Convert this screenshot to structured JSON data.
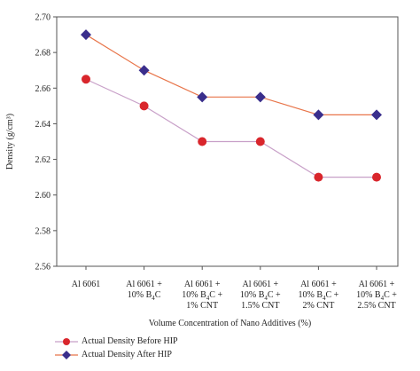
{
  "chart_data": {
    "type": "line",
    "title": "",
    "xlabel": "Volume Concentration of Nano Additives (%)",
    "ylabel": "Density (g/cm³)",
    "ylim": [
      2.56,
      2.7
    ],
    "yticks": [
      "2.56",
      "2.58",
      "2.60",
      "2.62",
      "2.64",
      "2.66",
      "2.68",
      "2.70"
    ],
    "grid": false,
    "legend_position": "bottom-left",
    "categories": [
      {
        "lines": [
          {
            "t": "Al 6061"
          }
        ]
      },
      {
        "lines": [
          {
            "t": "Al 6061 +"
          },
          {
            "t": "10% B",
            "sub": "4",
            "t2": "C"
          }
        ]
      },
      {
        "lines": [
          {
            "t": "Al 6061 +"
          },
          {
            "t": "10% B",
            "sub": "4",
            "t2": "C +"
          },
          {
            "t": "1% CNT"
          }
        ]
      },
      {
        "lines": [
          {
            "t": "Al 6061 +"
          },
          {
            "t": "10% B",
            "sub": "4",
            "t2": "C +"
          },
          {
            "t": "1.5% CNT"
          }
        ]
      },
      {
        "lines": [
          {
            "t": "Al 6061 +"
          },
          {
            "t": "10% B",
            "sub": "4",
            "t2": "C +"
          },
          {
            "t": "2% CNT"
          }
        ]
      },
      {
        "lines": [
          {
            "t": "Al 6061 +"
          },
          {
            "t": "10% B",
            "sub": "4",
            "t2": "C +"
          },
          {
            "t": "2.5% CNT"
          }
        ]
      }
    ],
    "series": [
      {
        "name": "Actual Density Before HIP",
        "marker": "circle",
        "line_color": "#c8a0c8",
        "marker_color": "#d9262c",
        "values": [
          2.665,
          2.65,
          2.63,
          2.63,
          2.61,
          2.61
        ]
      },
      {
        "name": "Actual Density After HIP",
        "marker": "diamond",
        "line_color": "#e8754a",
        "marker_color": "#3a2e8c",
        "values": [
          2.69,
          2.67,
          2.655,
          2.655,
          2.645,
          2.645
        ]
      }
    ]
  }
}
